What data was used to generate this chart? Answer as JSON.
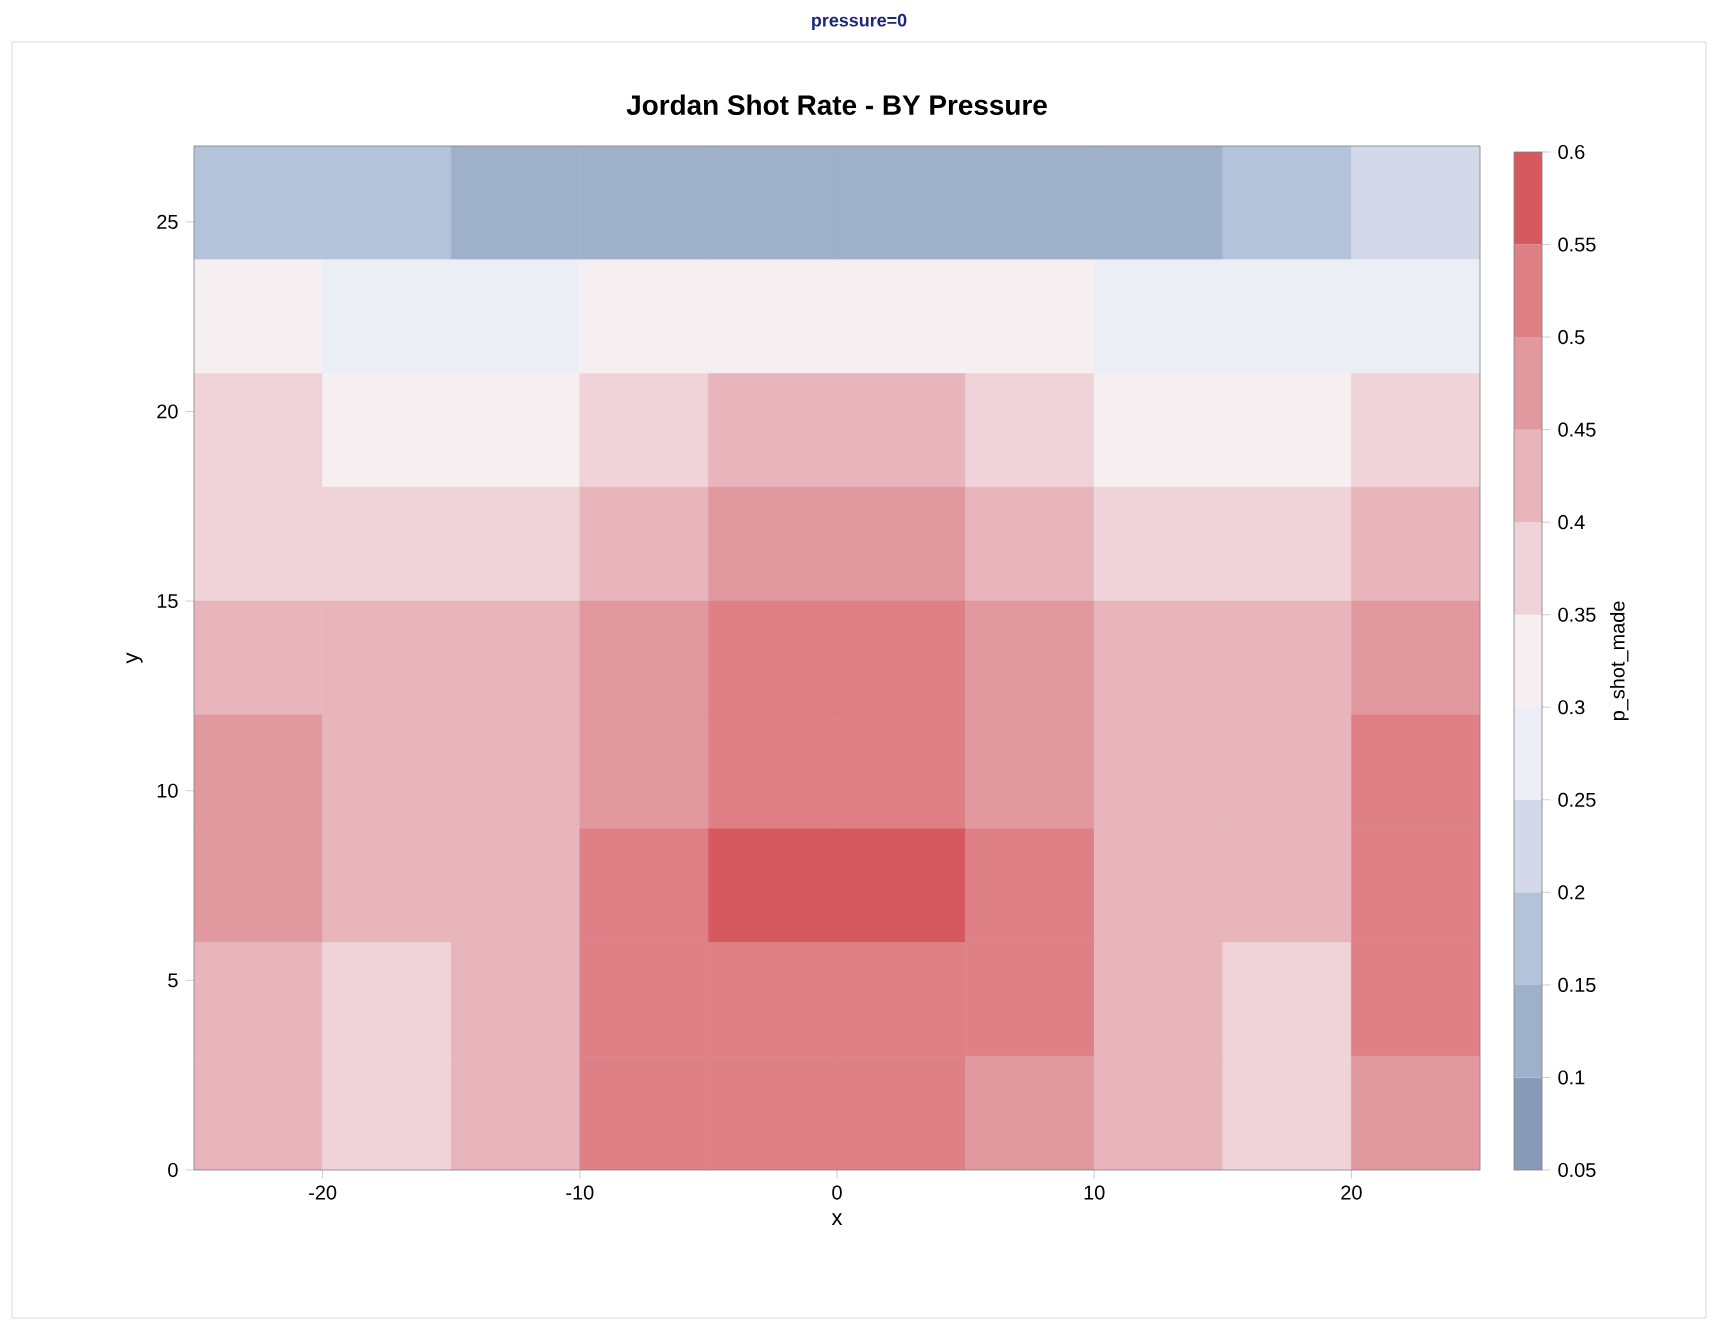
{
  "chart_data": {
    "type": "heatmap",
    "title": "Jordan Shot Rate - BY Pressure",
    "subtitle": "pressure=0",
    "xlabel": "x",
    "ylabel": "y",
    "clabel": "p_shot_made",
    "cells": [
      [
        0.175,
        0.175,
        0.125,
        0.125,
        0.125,
        0.125,
        0.125,
        0.125,
        0.175,
        0.225
      ],
      [
        0.325,
        0.275,
        0.275,
        0.325,
        0.325,
        0.325,
        0.325,
        0.275,
        0.275,
        0.275
      ],
      [
        0.375,
        0.325,
        0.325,
        0.375,
        0.425,
        0.425,
        0.375,
        0.325,
        0.325,
        0.375
      ],
      [
        0.375,
        0.375,
        0.375,
        0.425,
        0.475,
        0.475,
        0.425,
        0.375,
        0.375,
        0.425
      ],
      [
        0.425,
        0.425,
        0.425,
        0.475,
        0.525,
        0.525,
        0.475,
        0.425,
        0.425,
        0.475
      ],
      [
        0.475,
        0.425,
        0.425,
        0.475,
        0.525,
        0.525,
        0.475,
        0.425,
        0.425,
        0.525
      ],
      [
        0.475,
        0.425,
        0.425,
        0.525,
        0.575,
        0.575,
        0.525,
        0.425,
        0.425,
        0.525
      ],
      [
        0.425,
        0.375,
        0.425,
        0.525,
        0.525,
        0.525,
        0.525,
        0.425,
        0.375,
        0.525
      ],
      [
        0.425,
        0.375,
        0.425,
        0.525,
        0.525,
        0.525,
        0.475,
        0.425,
        0.375,
        0.475
      ]
    ],
    "colors": [
      "#8a9bba",
      "#9fb0cb",
      "#b4c3da",
      "#d3d9e8",
      "#eceef5",
      "#f6eff2",
      "#efd3d8",
      "#e8b5bc",
      "#e1999f",
      "#de8086",
      "#d6595f"
    ],
    "xlim": [
      -25,
      25
    ],
    "ylim": [
      0,
      27
    ],
    "xticks": [
      -20,
      -10,
      0,
      10,
      20
    ],
    "yticks": [
      0,
      5,
      10,
      15,
      20,
      25
    ],
    "clim": [
      0.05,
      0.6
    ],
    "cticks": [
      0.05,
      0.1,
      0.15,
      0.2,
      0.25,
      0.3,
      0.35,
      0.4,
      0.45,
      0.5,
      0.55,
      0.6
    ]
  }
}
